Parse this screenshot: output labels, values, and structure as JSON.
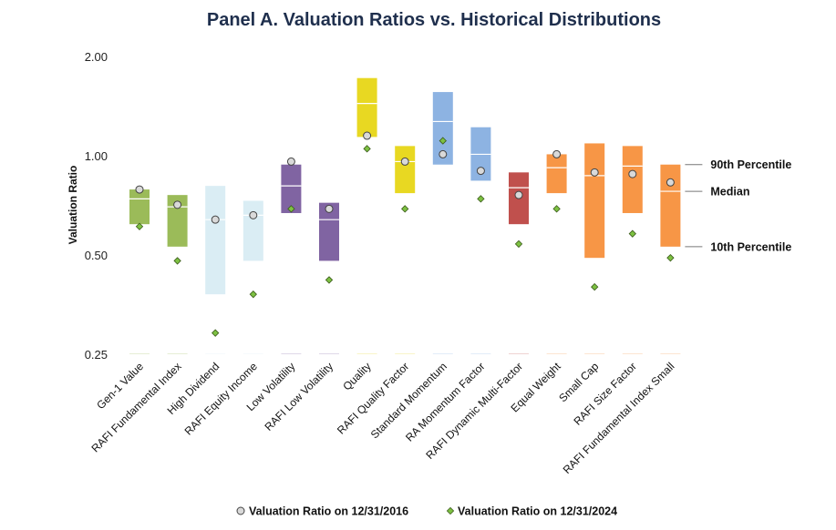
{
  "chart_data": {
    "type": "box-range",
    "title": "Panel A. Valuation Ratios vs. Historical Distributions",
    "ylabel": "Valuation Ratio",
    "xlabel": "",
    "yscale": "log2",
    "ylim": [
      0.25,
      2.0
    ],
    "yticks": [
      0.25,
      0.5,
      1.0,
      2.0
    ],
    "ytick_labels": [
      "0.25",
      "0.50",
      "1.00",
      "2.00"
    ],
    "categories": [
      "Gen-1 Value",
      "RAFI Fundamental Index",
      "High Dividend",
      "RAFI Equity Income",
      "Low Volatility",
      "RAFI Low Volatility",
      "Quality",
      "RAFI Quality Factor",
      "Standard Momentum",
      "RA Momentum Factor",
      "RAFI Dynamic Multi-Factor",
      "Equal Weight",
      "Small Cap",
      "RAFI Size Factor",
      "RAFI Fundamental Index Small"
    ],
    "colors": [
      "#9bbb59",
      "#9bbb59",
      "#daedf4",
      "#daedf4",
      "#8064a2",
      "#8064a2",
      "#e8d822",
      "#e8d822",
      "#8db3e2",
      "#8db3e2",
      "#c0504d",
      "#f79646",
      "#f79646",
      "#f79646",
      "#f79646"
    ],
    "series": [
      {
        "name": "10th Percentile",
        "values": [
          0.62,
          0.53,
          0.38,
          0.48,
          0.67,
          0.48,
          1.14,
          0.77,
          0.94,
          0.84,
          0.62,
          0.77,
          0.49,
          0.67,
          0.53
        ]
      },
      {
        "name": "Median",
        "values": [
          0.74,
          0.7,
          0.64,
          0.66,
          0.81,
          0.64,
          1.44,
          0.96,
          1.27,
          1.01,
          0.8,
          0.92,
          0.87,
          0.93,
          0.78
        ]
      },
      {
        "name": "90th Percentile",
        "values": [
          0.79,
          0.76,
          0.81,
          0.73,
          0.94,
          0.72,
          1.72,
          1.07,
          1.56,
          1.22,
          0.89,
          1.01,
          1.09,
          1.07,
          0.94
        ]
      },
      {
        "name": "Valuation Ratio on 12/31/2016",
        "marker": "circle",
        "color": "#d9d9d9",
        "values": [
          0.79,
          0.71,
          0.64,
          0.66,
          0.96,
          0.69,
          1.15,
          0.96,
          1.01,
          0.9,
          0.76,
          1.01,
          0.89,
          0.88,
          0.83
        ]
      },
      {
        "name": "Valuation Ratio on 12/31/2024",
        "marker": "diamond",
        "color": "#7dc142",
        "values": [
          0.61,
          0.48,
          0.29,
          0.38,
          0.69,
          0.42,
          1.05,
          0.69,
          1.11,
          0.74,
          0.54,
          0.69,
          0.4,
          0.58,
          0.49
        ]
      }
    ],
    "annotations": [
      "90th Percentile",
      "Median",
      "10th Percentile"
    ],
    "legend": {
      "position": "bottom",
      "items": [
        {
          "label": "Valuation Ratio on 12/31/2016",
          "marker": "circle"
        },
        {
          "label": "Valuation Ratio on 12/31/2024",
          "marker": "diamond"
        }
      ]
    },
    "grid": false
  }
}
